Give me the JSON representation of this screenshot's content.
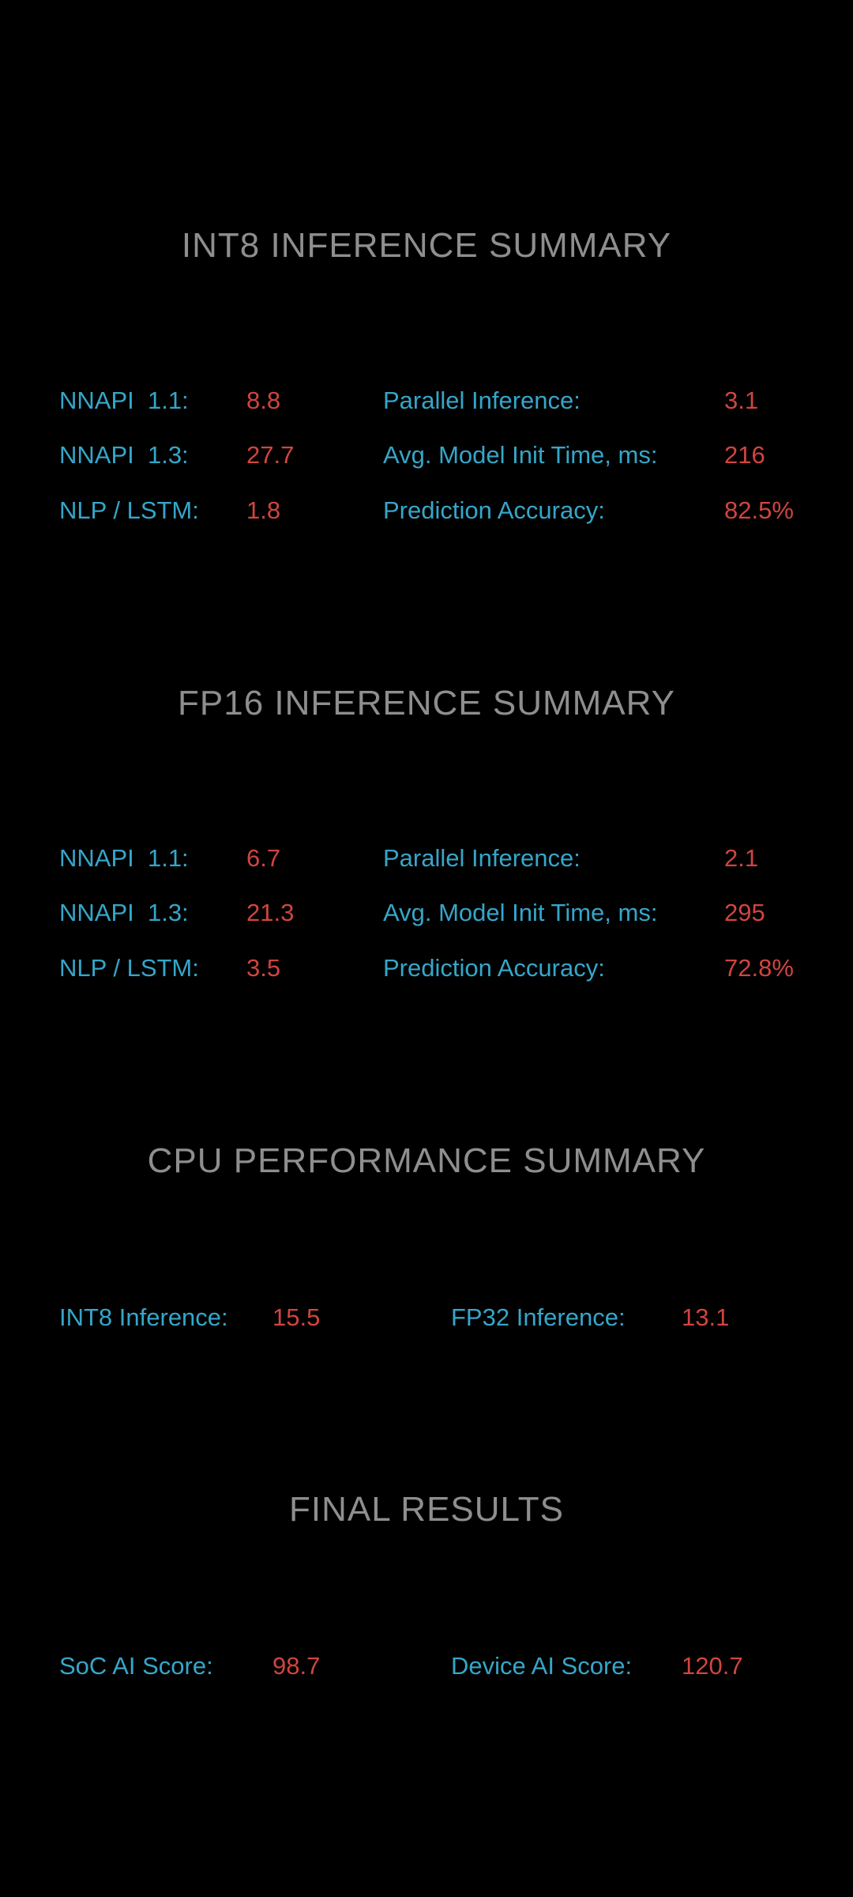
{
  "colors": {
    "background": "#000000",
    "heading": "#8e8e8e",
    "label": "#35a6c9",
    "value": "#d0453f"
  },
  "int8": {
    "title": "INT8 INFERENCE SUMMARY",
    "nnapi11_label": "NNAPI  1.1:",
    "nnapi11_value": "8.8",
    "nnapi13_label": "NNAPI  1.3:",
    "nnapi13_value": "27.7",
    "nlp_label": "NLP / LSTM:",
    "nlp_value": "1.8",
    "parallel_label": "Parallel Inference:",
    "parallel_value": "3.1",
    "init_label": "Avg. Model Init Time, ms:",
    "init_value": "216",
    "accuracy_label": "Prediction Accuracy:",
    "accuracy_value": "82.5%"
  },
  "fp16": {
    "title": "FP16 INFERENCE SUMMARY",
    "nnapi11_label": "NNAPI  1.1:",
    "nnapi11_value": "6.7",
    "nnapi13_label": "NNAPI  1.3:",
    "nnapi13_value": "21.3",
    "nlp_label": "NLP / LSTM:",
    "nlp_value": "3.5",
    "parallel_label": "Parallel Inference:",
    "parallel_value": "2.1",
    "init_label": "Avg. Model Init Time, ms:",
    "init_value": "295",
    "accuracy_label": "Prediction Accuracy:",
    "accuracy_value": "72.8%"
  },
  "cpu": {
    "title": "CPU PERFORMANCE SUMMARY",
    "int8_label": "INT8 Inference:",
    "int8_value": "15.5",
    "fp32_label": "FP32 Inference:",
    "fp32_value": "13.1"
  },
  "final": {
    "title": "FINAL RESULTS",
    "soc_label": "SoC AI Score:",
    "soc_value": "98.7",
    "device_label": "Device AI Score:",
    "device_value": "120.7"
  }
}
